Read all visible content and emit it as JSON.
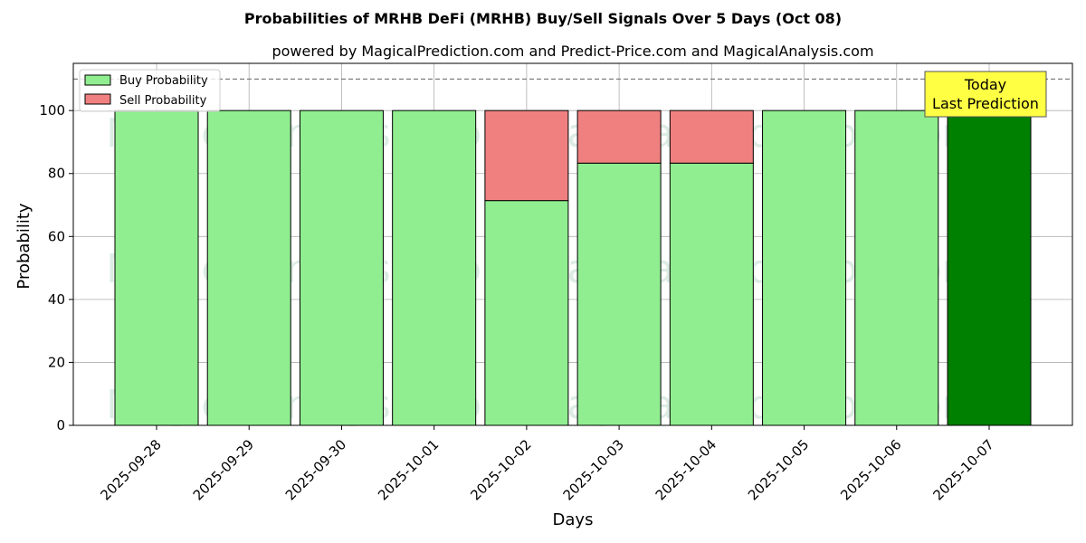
{
  "chart_data": {
    "type": "bar",
    "stacked": true,
    "title": "Probabilities of MRHB DeFi (MRHB) Buy/Sell Signals Over 5 Days (Oct 08)",
    "subtitle": "powered by MagicalPrediction.com and Predict-Price.com and MagicalAnalysis.com",
    "xlabel": "Days",
    "ylabel": "Probability",
    "ylim": [
      0,
      115
    ],
    "yticks": [
      0,
      20,
      40,
      60,
      80,
      100
    ],
    "grid": true,
    "legend_position": "top-left",
    "threshold_line": 110,
    "categories": [
      "2025-09-28",
      "2025-09-29",
      "2025-09-30",
      "2025-10-01",
      "2025-10-02",
      "2025-10-03",
      "2025-10-04",
      "2025-10-05",
      "2025-10-06",
      "2025-10-07"
    ],
    "series": [
      {
        "name": "Buy Probability",
        "color": "#90ee90",
        "values": [
          100,
          100,
          100,
          100,
          71.4,
          83.3,
          83.3,
          100,
          100,
          100
        ]
      },
      {
        "name": "Sell Probability",
        "color": "#f08080",
        "values": [
          0,
          0,
          0,
          0,
          28.6,
          16.7,
          16.7,
          0,
          0,
          0
        ]
      }
    ],
    "highlight": {
      "index": 9,
      "color": "#008000",
      "label_line1": "Today",
      "label_line2": "Last Prediction",
      "label_bg": "#ffff44"
    },
    "watermarks": [
      "MagicalAnalysis.com",
      "MagicalPrediction.com"
    ]
  }
}
